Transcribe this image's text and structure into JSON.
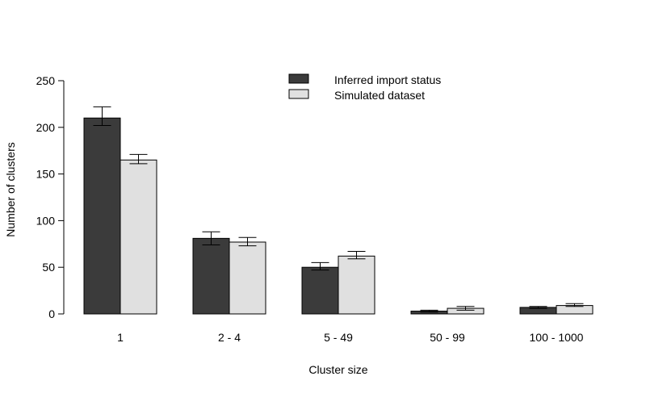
{
  "chart_data": {
    "type": "bar",
    "title": "",
    "xlabel": "Cluster size",
    "ylabel": "Number of clusters",
    "categories": [
      "1",
      "2 - 4",
      "5 - 49",
      "50 - 99",
      "100 - 1000"
    ],
    "ylim": [
      0,
      250
    ],
    "yticks": [
      "0",
      "50",
      "100",
      "150",
      "200",
      "250"
    ],
    "legend_position": "top-center",
    "series": [
      {
        "name": "Inferred import status",
        "color": "#3b3b3b",
        "values": [
          210,
          81,
          50,
          3,
          7
        ],
        "error_low": [
          202,
          74,
          47,
          2,
          6
        ],
        "error_high": [
          222,
          88,
          55,
          4,
          8
        ]
      },
      {
        "name": "Simulated dataset",
        "color": "#e0e0e0",
        "values": [
          165,
          77,
          62,
          6,
          9
        ],
        "error_low": [
          161,
          73,
          59,
          4,
          8
        ],
        "error_high": [
          171,
          82,
          67,
          8,
          11
        ]
      }
    ]
  }
}
